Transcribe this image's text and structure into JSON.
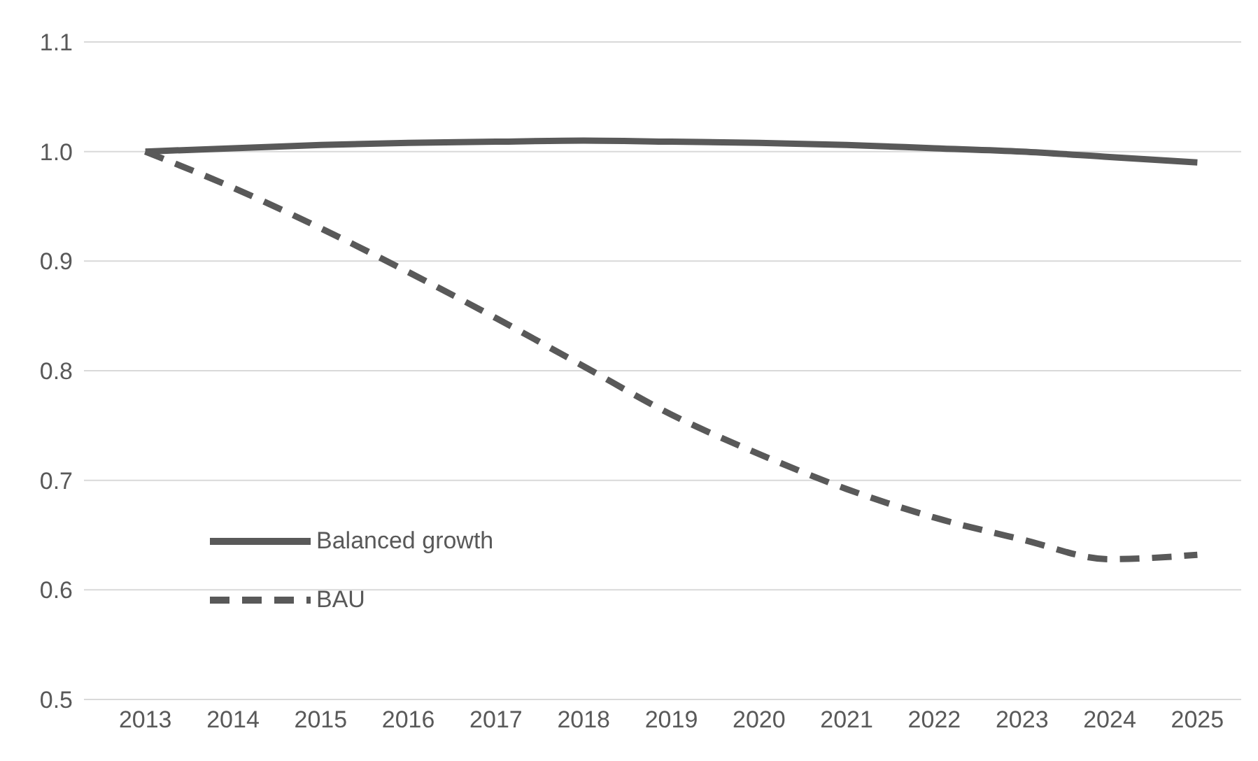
{
  "chart_data": {
    "type": "line",
    "x": [
      2013,
      2014,
      2015,
      2016,
      2017,
      2018,
      2019,
      2020,
      2021,
      2022,
      2023,
      2024,
      2025
    ],
    "series": [
      {
        "name": "Balanced growth",
        "color": "#595959",
        "line_style": "solid",
        "values": [
          1.0,
          1.003,
          1.006,
          1.008,
          1.009,
          1.01,
          1.009,
          1.008,
          1.006,
          1.003,
          1.0,
          0.995,
          0.99
        ]
      },
      {
        "name": "BAU",
        "color": "#595959",
        "line_style": "dashed",
        "values": [
          1.0,
          0.967,
          0.93,
          0.89,
          0.848,
          0.804,
          0.76,
          0.724,
          0.692,
          0.666,
          0.646,
          0.628,
          0.632
        ]
      }
    ],
    "xlim": [
      2012.3,
      2025.5
    ],
    "xticks": [
      2013,
      2014,
      2015,
      2016,
      2017,
      2018,
      2019,
      2020,
      2021,
      2022,
      2023,
      2024,
      2025
    ],
    "ylim": [
      0.5,
      1.1
    ],
    "yticks": [
      {
        "value": 0.5,
        "label": "0.5"
      },
      {
        "value": 0.6,
        "label": "0.6"
      },
      {
        "value": 0.7,
        "label": "0.7"
      },
      {
        "value": 0.8,
        "label": "0.8"
      },
      {
        "value": 0.9,
        "label": "0.9"
      },
      {
        "value": 1.0,
        "label": "1.0"
      },
      {
        "value": 1.1,
        "label": "1.1"
      }
    ],
    "grid": "y",
    "legend": "bottom left",
    "marker": "none"
  }
}
